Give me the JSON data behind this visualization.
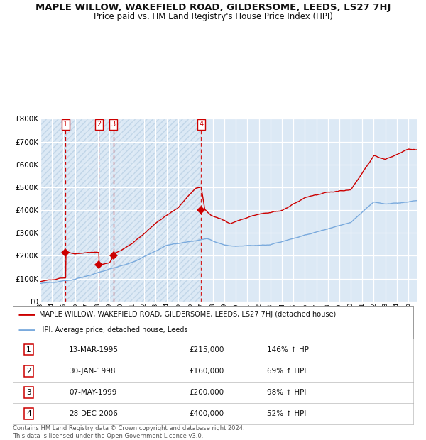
{
  "title": "MAPLE WILLOW, WAKEFIELD ROAD, GILDERSOME, LEEDS, LS27 7HJ",
  "subtitle": "Price paid vs. HM Land Registry's House Price Index (HPI)",
  "title_fontsize": 9.5,
  "subtitle_fontsize": 8.5,
  "plot_bg_color": "#dce9f5",
  "grid_color": "#ffffff",
  "ylim": [
    0,
    800000
  ],
  "yticks": [
    0,
    100000,
    200000,
    300000,
    400000,
    500000,
    600000,
    700000,
    800000
  ],
  "xlim_start": 1993.0,
  "xlim_end": 2025.8,
  "hpi_color": "#7aaadd",
  "price_color": "#cc0000",
  "vline_color": "#cc0000",
  "sales": [
    {
      "num": 1,
      "date_label": "13-MAR-1995",
      "date_x": 1995.19,
      "price": 215000,
      "pct": "146%",
      "dir": "↑"
    },
    {
      "num": 2,
      "date_label": "30-JAN-1998",
      "date_x": 1998.08,
      "price": 160000,
      "pct": "69%",
      "dir": "↑"
    },
    {
      "num": 3,
      "date_label": "07-MAY-1999",
      "date_x": 1999.35,
      "price": 200000,
      "pct": "98%",
      "dir": "↑"
    },
    {
      "num": 4,
      "date_label": "28-DEC-2006",
      "date_x": 2006.98,
      "price": 400000,
      "pct": "52%",
      "dir": "↑"
    }
  ],
  "legend_line1": "MAPLE WILLOW, WAKEFIELD ROAD, GILDERSOME, LEEDS, LS27 7HJ (detached house)",
  "legend_line2": "HPI: Average price, detached house, Leeds",
  "footer": "Contains HM Land Registry data © Crown copyright and database right 2024.\nThis data is licensed under the Open Government Licence v3.0."
}
